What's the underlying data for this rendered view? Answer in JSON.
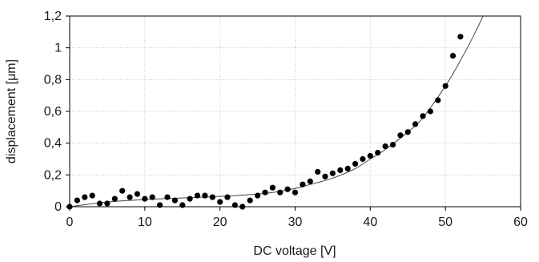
{
  "chart_data": {
    "type": "scatter",
    "title": "",
    "xlabel": "DC voltage [V]",
    "ylabel": "displacement [μm]",
    "xlim": [
      0,
      60
    ],
    "ylim": [
      0,
      1.2
    ],
    "x_ticks": [
      0,
      10,
      20,
      30,
      40,
      50,
      60
    ],
    "y_ticks": [
      0,
      0.2,
      0.4,
      0.6,
      0.8,
      1.0,
      1.2
    ],
    "x_tick_labels": [
      "0",
      "10",
      "20",
      "30",
      "40",
      "50",
      "60"
    ],
    "y_tick_labels": [
      "0",
      "0,2",
      "0,4",
      "0,6",
      "0,8",
      "1",
      "1,2"
    ],
    "grid": true,
    "legend": "none",
    "series": [
      {
        "kind": "points",
        "marker": "filled-circle",
        "color": "#000000",
        "x": [
          0,
          1,
          2,
          3,
          4,
          5,
          6,
          7,
          8,
          9,
          10,
          11,
          12,
          13,
          14,
          15,
          16,
          17,
          18,
          19,
          20,
          21,
          22,
          23,
          24,
          25,
          26,
          27,
          28,
          29,
          30,
          31,
          32,
          33,
          34,
          35,
          36,
          37,
          38,
          39,
          40,
          41,
          42,
          43,
          44,
          45,
          46,
          47,
          48,
          49,
          50,
          51,
          52
        ],
        "y": [
          0.0,
          0.04,
          0.06,
          0.07,
          0.02,
          0.02,
          0.05,
          0.1,
          0.06,
          0.08,
          0.05,
          0.06,
          0.01,
          0.06,
          0.04,
          0.01,
          0.05,
          0.07,
          0.07,
          0.06,
          0.03,
          0.06,
          0.01,
          0.0,
          0.04,
          0.07,
          0.09,
          0.12,
          0.09,
          0.11,
          0.09,
          0.14,
          0.16,
          0.22,
          0.19,
          0.21,
          0.23,
          0.24,
          0.27,
          0.3,
          0.32,
          0.34,
          0.38,
          0.39,
          0.45,
          0.47,
          0.52,
          0.57,
          0.6,
          0.67,
          0.76,
          0.95,
          1.07
        ]
      },
      {
        "kind": "line",
        "color": "#444444",
        "x": [
          0,
          5,
          10,
          15,
          20,
          22,
          25,
          27,
          30,
          32,
          35,
          38,
          40,
          42,
          45,
          47,
          50,
          52,
          54,
          55
        ],
        "y": [
          0.0,
          0.03,
          0.045,
          0.055,
          0.065,
          0.07,
          0.08,
          0.09,
          0.115,
          0.14,
          0.18,
          0.24,
          0.3,
          0.36,
          0.47,
          0.56,
          0.76,
          0.92,
          1.1,
          1.2
        ]
      }
    ]
  }
}
